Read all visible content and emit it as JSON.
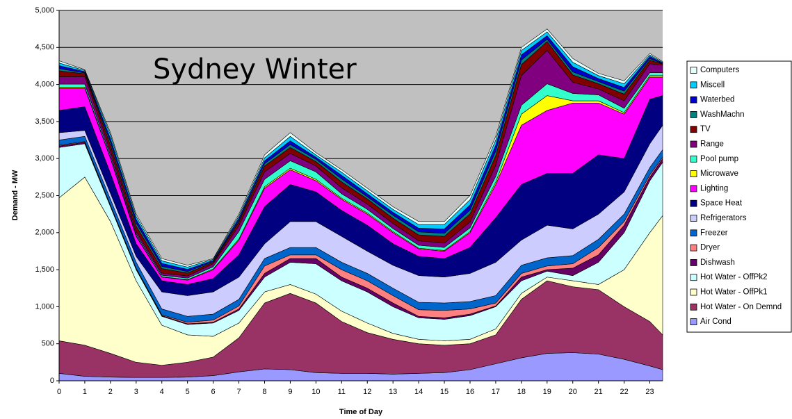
{
  "chart_data": {
    "type": "area",
    "stacked": true,
    "title": "Sydney Winter",
    "x_label": "Time of Day",
    "y_label": "Demand - MW",
    "x": [
      0,
      1,
      2,
      3,
      4,
      5,
      6,
      7,
      8,
      9,
      10,
      11,
      12,
      13,
      14,
      15,
      16,
      17,
      18,
      19,
      20,
      21,
      22,
      23,
      23.5
    ],
    "xlim": [
      0,
      23.5
    ],
    "xticks": [
      0,
      1,
      2,
      3,
      4,
      5,
      6,
      7,
      8,
      9,
      10,
      11,
      12,
      13,
      14,
      15,
      16,
      17,
      18,
      19,
      20,
      21,
      22,
      23
    ],
    "ylim": [
      0,
      5000
    ],
    "yticks": [
      0,
      500,
      {
        "value": 1000,
        "label": "1,000"
      },
      {
        "value": 1500,
        "label": "1,500"
      },
      {
        "value": 2000,
        "label": "2,000"
      },
      {
        "value": 2500,
        "label": "2,500"
      },
      {
        "value": 3000,
        "label": "3,000"
      },
      {
        "value": 3500,
        "label": "3,500"
      },
      {
        "value": 4000,
        "label": "4,000"
      },
      {
        "value": 4500,
        "label": "4,500"
      },
      {
        "value": 5000,
        "label": "5,000"
      }
    ],
    "grid": true,
    "background": "#c0c0c0",
    "legend": "right",
    "series": [
      {
        "name": "Air Cond",
        "color": "#9999ff",
        "values": [
          100,
          60,
          50,
          45,
          45,
          50,
          70,
          120,
          160,
          150,
          110,
          100,
          100,
          90,
          100,
          110,
          150,
          230,
          310,
          370,
          380,
          360,
          290,
          200,
          150
        ]
      },
      {
        "name": "Hot Water - On Demnd",
        "color": "#993366",
        "values": [
          440,
          420,
          320,
          205,
          165,
          200,
          250,
          460,
          890,
          1030,
          940,
          700,
          550,
          470,
          400,
          370,
          350,
          390,
          790,
          980,
          890,
          870,
          710,
          600,
          470
        ]
      },
      {
        "name": "Hot Water - OffPk1",
        "color": "#ffffcc",
        "values": [
          1930,
          2270,
          1780,
          1100,
          540,
          370,
          280,
          200,
          150,
          120,
          120,
          140,
          130,
          80,
          60,
          60,
          60,
          80,
          80,
          50,
          80,
          70,
          500,
          1200,
          1610
        ]
      },
      {
        "name": "Hot Water - OffPk2",
        "color": "#ccffff",
        "values": [
          680,
          450,
          200,
          150,
          120,
          140,
          180,
          170,
          200,
          300,
          410,
          410,
          420,
          360,
          290,
          290,
          320,
          300,
          170,
          80,
          70,
          300,
          500,
          700,
          720
        ]
      },
      {
        "name": "Dishwash",
        "color": "#660066",
        "values": [
          20,
          20,
          10,
          10,
          10,
          10,
          10,
          20,
          50,
          50,
          70,
          50,
          50,
          50,
          20,
          20,
          20,
          10,
          50,
          20,
          100,
          100,
          100,
          50,
          50
        ]
      },
      {
        "name": "Dryer",
        "color": "#ff8080",
        "values": [
          10,
          10,
          10,
          10,
          10,
          20,
          30,
          40,
          100,
          50,
          50,
          100,
          100,
          100,
          90,
          100,
          70,
          40,
          50,
          50,
          60,
          100,
          50,
          30,
          20
        ]
      },
      {
        "name": "Freezer",
        "color": "#0066cc",
        "values": [
          70,
          70,
          80,
          80,
          80,
          80,
          80,
          90,
          100,
          100,
          100,
          100,
          100,
          100,
          100,
          100,
          100,
          100,
          110,
          110,
          110,
          110,
          100,
          100,
          100
        ]
      },
      {
        "name": "Refrigerators",
        "color": "#ccccff",
        "values": [
          100,
          80,
          80,
          80,
          230,
          280,
          300,
          300,
          200,
          350,
          350,
          350,
          300,
          310,
          360,
          350,
          380,
          450,
          340,
          440,
          360,
          340,
          300,
          320,
          330
        ]
      },
      {
        "name": "Space Heat",
        "color": "#000080",
        "values": [
          300,
          320,
          270,
          170,
          150,
          150,
          180,
          300,
          500,
          500,
          400,
          350,
          350,
          290,
          260,
          250,
          350,
          600,
          750,
          700,
          750,
          800,
          450,
          600,
          400
        ]
      },
      {
        "name": "Lighting",
        "color": "#ff00ff",
        "values": [
          300,
          250,
          200,
          100,
          50,
          60,
          120,
          200,
          250,
          200,
          150,
          150,
          150,
          150,
          100,
          100,
          200,
          450,
          800,
          850,
          950,
          700,
          600,
          300,
          250
        ]
      },
      {
        "name": "Microwave",
        "color": "#ffff00",
        "values": [
          15,
          15,
          10,
          10,
          5,
          5,
          10,
          15,
          20,
          20,
          20,
          15,
          15,
          15,
          10,
          10,
          15,
          30,
          150,
          200,
          30,
          30,
          20,
          20,
          20
        ]
      },
      {
        "name": "Pool pump",
        "color": "#33ffcc",
        "values": [
          40,
          40,
          30,
          20,
          20,
          20,
          30,
          100,
          100,
          100,
          100,
          60,
          50,
          40,
          40,
          40,
          50,
          80,
          120,
          160,
          100,
          80,
          60,
          40,
          40
        ]
      },
      {
        "name": "Range",
        "color": "#800080",
        "values": [
          100,
          100,
          60,
          40,
          30,
          30,
          40,
          80,
          100,
          100,
          80,
          80,
          70,
          70,
          60,
          60,
          80,
          150,
          400,
          450,
          150,
          80,
          100,
          120,
          100
        ]
      },
      {
        "name": "TV",
        "color": "#800000",
        "values": [
          80,
          40,
          80,
          70,
          60,
          40,
          20,
          50,
          80,
          80,
          60,
          80,
          70,
          70,
          80,
          90,
          110,
          130,
          150,
          120,
          100,
          70,
          90,
          50,
          15
        ]
      },
      {
        "name": "WashMachn",
        "color": "#008080",
        "values": [
          30,
          10,
          40,
          40,
          30,
          20,
          10,
          20,
          30,
          40,
          30,
          40,
          30,
          40,
          40,
          40,
          50,
          60,
          60,
          30,
          40,
          30,
          40,
          20,
          5
        ]
      },
      {
        "name": "Waterbed",
        "color": "#0000cc",
        "values": [
          40,
          20,
          50,
          50,
          40,
          30,
          15,
          30,
          40,
          50,
          30,
          50,
          40,
          40,
          50,
          60,
          70,
          80,
          70,
          50,
          70,
          40,
          50,
          30,
          10
        ]
      },
      {
        "name": "Miscell",
        "color": "#00ccff",
        "values": [
          35,
          15,
          50,
          40,
          35,
          30,
          15,
          30,
          40,
          60,
          30,
          40,
          40,
          40,
          50,
          60,
          70,
          70,
          60,
          50,
          60,
          40,
          50,
          20,
          10
        ]
      },
      {
        "name": "Computers",
        "color": "#e6fffa",
        "values": [
          30,
          10,
          30,
          30,
          30,
          25,
          10,
          25,
          40,
          50,
          30,
          35,
          35,
          35,
          40,
          40,
          55,
          50,
          40,
          40,
          50,
          30,
          40,
          20,
          10
        ]
      }
    ]
  }
}
